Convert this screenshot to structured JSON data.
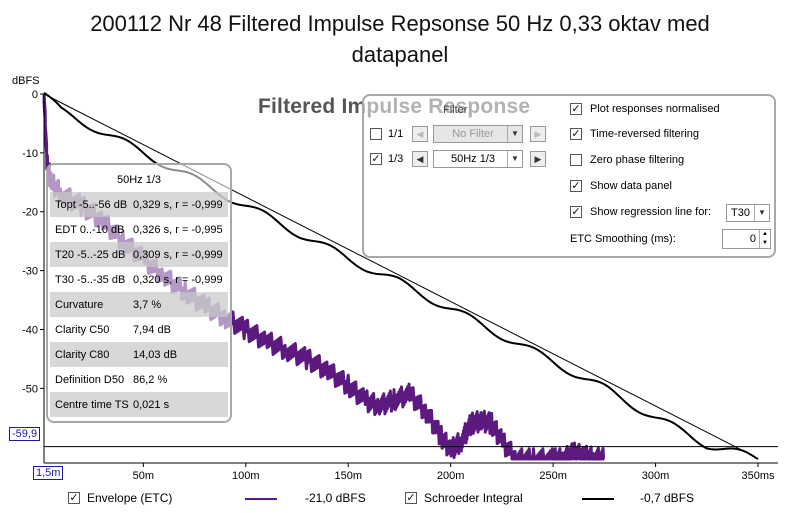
{
  "window_title_line1": "200112 Nr 48 Filtered Impulse Repsonse 50 Hz 0,33 oktav med",
  "window_title_line2": "datapanel",
  "chart_data": {
    "type": "line",
    "title": "Filtered Impulse Response",
    "ylabel": "dBFS",
    "xunit": "ms",
    "xlim": [
      1.5,
      350
    ],
    "ylim": [
      -62,
      0
    ],
    "x_tick_labels": [
      "50m",
      "100m",
      "150m",
      "200m",
      "250m",
      "300m",
      "350ms"
    ],
    "x_ticks": [
      50,
      100,
      150,
      200,
      250,
      300,
      350
    ],
    "y_tick_labels": [
      "0",
      "-10",
      "-20",
      "-30",
      "-40",
      "-50"
    ],
    "y_ticks": [
      0,
      -10,
      -20,
      -30,
      -40,
      -50
    ],
    "cursor_y_label": "-59,9",
    "cursor_y_value": -59.9,
    "cursor_x_label": "1,5m",
    "series": [
      {
        "name": "Envelope (ETC)",
        "color": "#5c1a80",
        "legend_value": "-21,0 dBFS",
        "x": [
          1.5,
          3,
          5,
          10,
          20,
          30,
          40,
          50,
          60,
          70,
          80,
          90,
          100,
          110,
          120,
          130,
          140,
          150,
          158,
          165,
          172,
          180,
          188,
          195,
          200,
          205,
          210,
          215,
          220,
          225,
          232,
          240,
          250,
          255,
          260,
          265,
          270,
          275
        ],
        "y": [
          0,
          -12,
          -15,
          -17,
          -19,
          -21.5,
          -25,
          -28,
          -31,
          -33.5,
          -36,
          -38,
          -40,
          -42,
          -43.5,
          -45,
          -47,
          -49.5,
          -52,
          -53,
          -52,
          -51,
          -54,
          -58,
          -60.5,
          -59,
          -56,
          -55.5,
          -56,
          -59,
          -62,
          -62,
          -62,
          -62,
          -61,
          -61.5,
          -61.8,
          -62
        ]
      },
      {
        "name": "Schroeder Integral",
        "color": "#000000",
        "legend_value": "-0,7 dBFS",
        "x": [
          1.5,
          10,
          25,
          50,
          75,
          100,
          125,
          150,
          175,
          200,
          225,
          250,
          275,
          300,
          325,
          350
        ],
        "y": [
          0,
          -3,
          -5.5,
          -10,
          -14.5,
          -19,
          -23.5,
          -28,
          -32,
          -36.5,
          -41,
          -45.5,
          -50,
          -55,
          -59.5,
          -62
        ]
      },
      {
        "name": "Regression line (T30)",
        "color": "#000000",
        "x": [
          1.5,
          345
        ],
        "y": [
          0,
          -61
        ]
      }
    ]
  },
  "data_panel": {
    "title": "50Hz 1/3",
    "rows": [
      {
        "k": "Topt -5..-56 dB",
        "v": "0,329 s,  r = -0,999"
      },
      {
        "k": "EDT  0..-10 dB",
        "v": "0,326 s,  r = -0,995"
      },
      {
        "k": "T20 -5..-25 dB",
        "v": "0,309 s,  r = -0,999"
      },
      {
        "k": "T30 -5..-35 dB",
        "v": "0,320 s,  r = -0,999"
      },
      {
        "k": "Curvature",
        "v": "3,7 %"
      },
      {
        "k": "Clarity C50",
        "v": "7,94 dB"
      },
      {
        "k": "Clarity C80",
        "v": "14,03 dB"
      },
      {
        "k": "Definition D50",
        "v": "86,2 %"
      },
      {
        "k": "Centre time TS",
        "v": "0,021 s"
      }
    ]
  },
  "filter_panel": {
    "heading": "Filter",
    "row1": {
      "label": "1/1",
      "checked": false,
      "combo": "No Filter"
    },
    "row2": {
      "label": "1/3",
      "checked": true,
      "combo": "50Hz 1/3"
    },
    "options": [
      {
        "label": "Plot responses normalised",
        "checked": true
      },
      {
        "label": "Time-reversed filtering",
        "checked": true
      },
      {
        "label": "Zero phase filtering",
        "checked": false
      },
      {
        "label": "Show data panel",
        "checked": true
      },
      {
        "label": "Show regression line for:",
        "checked": true
      }
    ],
    "regression_select": "T30",
    "etc_smoothing_label": "ETC Smoothing (ms):",
    "etc_smoothing_value": "0"
  },
  "legend": {
    "envelope_label": "Envelope (ETC)",
    "envelope_value": "-21,0 dBFS",
    "schroeder_label": "Schroeder Integral",
    "schroeder_value": "-0,7 dBFS",
    "envelope_checked": true,
    "schroeder_checked": true
  },
  "colors": {
    "envelope": "#5c1a80",
    "schroeder": "#000000",
    "cursor": "#1b1b9b"
  },
  "icons": [
    "checkbox-checked-icon",
    "arrow-left-icon",
    "arrow-right-icon",
    "chevron-down-icon",
    "spin-up-icon",
    "spin-down-icon"
  ]
}
